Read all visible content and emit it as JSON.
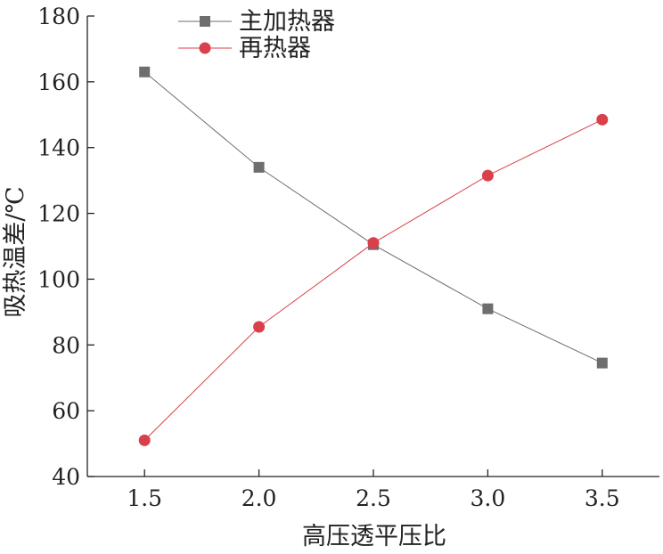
{
  "chart_data": {
    "type": "line",
    "title": "",
    "xlabel": "高压透平压比",
    "ylabel": "吸热温差/℃",
    "x": [
      1.5,
      2.0,
      2.5,
      3.0,
      3.5
    ],
    "x_tick_labels": [
      "1.5",
      "2.0",
      "2.5",
      "3.0",
      "3.5"
    ],
    "y_tick_labels": [
      "40",
      "60",
      "80",
      "100",
      "120",
      "140",
      "160",
      "180"
    ],
    "xlim": [
      1.25,
      3.75
    ],
    "ylim": [
      40,
      180
    ],
    "grid": false,
    "legend_position": "top-center",
    "series": [
      {
        "name": "主加热器",
        "marker": "square",
        "color": "#6e6e6e",
        "values": [
          163,
          134,
          110.5,
          91,
          74.5
        ]
      },
      {
        "name": "再热器",
        "marker": "circle",
        "color": "#d9404b",
        "values": [
          51,
          85.5,
          111,
          131.5,
          148.5
        ]
      }
    ]
  }
}
